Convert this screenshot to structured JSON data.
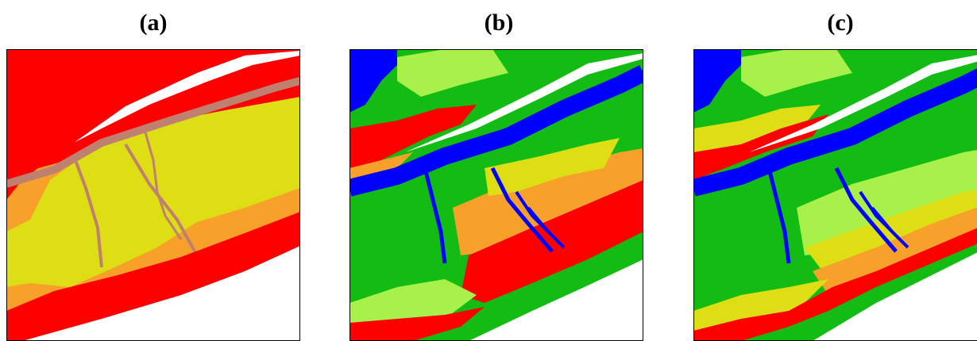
{
  "panels": [
    {
      "id": "a",
      "label": "(a)"
    },
    {
      "id": "b",
      "label": "(b)"
    },
    {
      "id": "c",
      "label": "(c)"
    }
  ],
  "colors": {
    "red": "#ff0000",
    "orange": "#f7a12b",
    "yellow": "#dede14",
    "light_green": "#a8f04a",
    "green": "#12bc12",
    "blue": "#0000ff",
    "brown": "#c08070",
    "white": "#ffffff"
  }
}
